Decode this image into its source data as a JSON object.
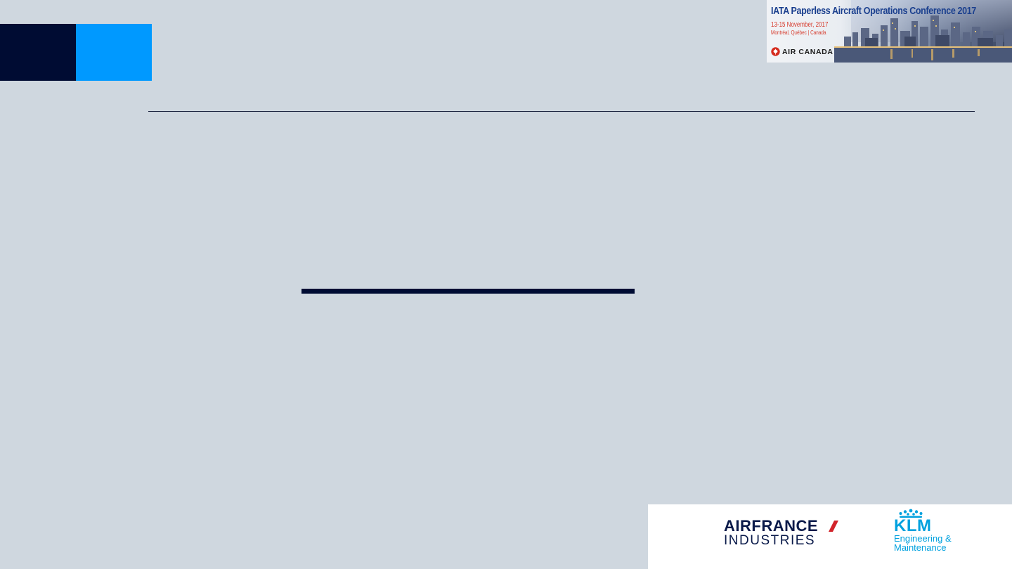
{
  "slide": {
    "background_color": "#cfd7df",
    "accent_dark": "#000c33",
    "accent_blue": "#0099ff"
  },
  "conference_banner": {
    "title": "IATA Paperless Aircraft Operations Conference 2017",
    "dates": "13-15 November, 2017",
    "location": "Montréal, Québec | Canada",
    "host_logo": "AIR CANADA"
  },
  "partner_logo": {
    "company_line1": "AIRFRANCE",
    "company_line2": "INDUSTRIES",
    "klm_name": "KLM",
    "klm_sub_line1": "Engineering &",
    "klm_sub_line2": "Maintenance"
  }
}
